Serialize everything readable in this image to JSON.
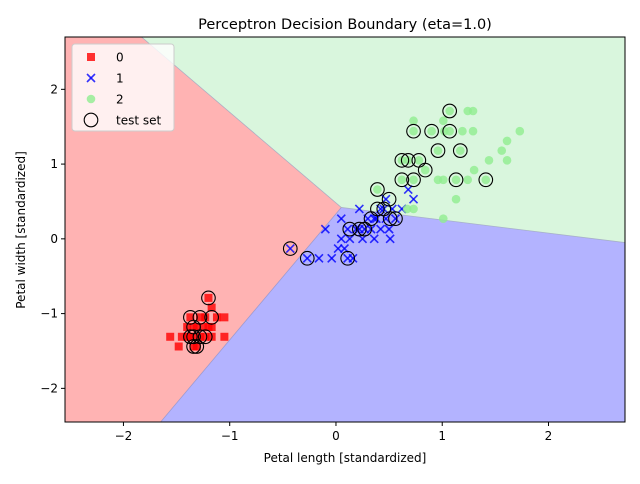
{
  "chart_data": {
    "type": "scatter",
    "title": "Perceptron Decision Boundary (eta=1.0)",
    "xlabel": "Petal length [standardized]",
    "ylabel": "Petal width [standardized]",
    "xlim": [
      -2.55,
      2.72
    ],
    "ylim": [
      -2.45,
      2.7
    ],
    "xticks": [
      -2,
      -1,
      0,
      1,
      2
    ],
    "yticks": [
      -2,
      -1,
      0,
      1,
      2
    ],
    "grid": false,
    "legend_position": "top-left",
    "regions": [
      {
        "class": "0",
        "color": "#FFB3B3"
      },
      {
        "class": "1",
        "color": "#B3B3FF"
      },
      {
        "class": "2",
        "color": "#D9F6DD"
      }
    ],
    "boundary_vertex": [
      0.05,
      0.42
    ],
    "boundaries": [
      {
        "between": "0|2",
        "from": [
          0.05,
          0.42
        ],
        "to": [
          -1.83,
          2.7
        ]
      },
      {
        "between": "0|1",
        "from": [
          0.05,
          0.42
        ],
        "to": [
          -1.65,
          -2.45
        ]
      },
      {
        "between": "1|2",
        "from": [
          0.05,
          0.42
        ],
        "to": [
          2.72,
          -0.05
        ]
      }
    ],
    "series": [
      {
        "name": "0",
        "marker": "square",
        "color": "#FF0000",
        "points": [
          [
            -1.56,
            -1.31
          ],
          [
            -1.48,
            -1.44
          ],
          [
            -1.45,
            -1.31
          ],
          [
            -1.4,
            -1.18
          ],
          [
            -1.37,
            -1.05
          ],
          [
            -1.34,
            -1.31
          ],
          [
            -1.34,
            -1.18
          ],
          [
            -1.31,
            -1.44
          ],
          [
            -1.28,
            -1.31
          ],
          [
            -1.25,
            -1.18
          ],
          [
            -1.23,
            -1.05
          ],
          [
            -1.2,
            -0.79
          ],
          [
            -1.17,
            -1.18
          ],
          [
            -1.17,
            -1.31
          ],
          [
            -1.17,
            -0.92
          ],
          [
            -1.12,
            -1.05
          ],
          [
            -1.05,
            -1.05
          ],
          [
            -1.05,
            -1.31
          ],
          [
            -1.28,
            -1.05
          ],
          [
            -1.37,
            -1.31
          ],
          [
            -1.31,
            -1.18
          ],
          [
            -1.23,
            -1.31
          ],
          [
            -1.34,
            -1.44
          ],
          [
            -1.4,
            -1.31
          ],
          [
            -1.2,
            -1.18
          ]
        ]
      },
      {
        "name": "1",
        "marker": "x",
        "color": "#0000FF",
        "points": [
          [
            -0.43,
            -0.13
          ],
          [
            -0.27,
            -0.26
          ],
          [
            -0.16,
            -0.26
          ],
          [
            -0.1,
            0.13
          ],
          [
            -0.04,
            -0.26
          ],
          [
            0.02,
            -0.13
          ],
          [
            0.05,
            0.0
          ],
          [
            0.05,
            0.27
          ],
          [
            0.08,
            -0.13
          ],
          [
            0.11,
            0.13
          ],
          [
            0.13,
            0.0
          ],
          [
            0.16,
            -0.26
          ],
          [
            0.19,
            0.13
          ],
          [
            0.22,
            0.4
          ],
          [
            0.25,
            0.0
          ],
          [
            0.27,
            0.13
          ],
          [
            0.3,
            0.27
          ],
          [
            0.33,
            0.13
          ],
          [
            0.36,
            0.0
          ],
          [
            0.38,
            0.27
          ],
          [
            0.42,
            0.13
          ],
          [
            0.45,
            0.4
          ],
          [
            0.47,
            0.27
          ],
          [
            0.5,
            0.13
          ],
          [
            0.51,
            0.0
          ],
          [
            0.53,
            0.4
          ],
          [
            0.56,
            0.27
          ],
          [
            0.62,
            0.4
          ],
          [
            0.68,
            0.66
          ],
          [
            0.73,
            0.53
          ],
          [
            0.11,
            -0.26
          ],
          [
            0.22,
            0.13
          ],
          [
            0.36,
            0.27
          ],
          [
            0.42,
            0.4
          ],
          [
            0.47,
            0.53
          ]
        ]
      },
      {
        "name": "2",
        "marker": "circle",
        "color": "#90EE90",
        "points": [
          [
            0.39,
            0.66
          ],
          [
            0.62,
            0.79
          ],
          [
            0.68,
            1.05
          ],
          [
            0.73,
            0.79
          ],
          [
            0.73,
            1.44
          ],
          [
            0.73,
            1.58
          ],
          [
            0.78,
            1.05
          ],
          [
            0.84,
            0.92
          ],
          [
            0.9,
            1.44
          ],
          [
            0.96,
            1.18
          ],
          [
            0.96,
            0.79
          ],
          [
            1.01,
            0.79
          ],
          [
            1.01,
            0.27
          ],
          [
            1.01,
            1.58
          ],
          [
            1.07,
            1.44
          ],
          [
            1.07,
            1.71
          ],
          [
            1.13,
            0.79
          ],
          [
            1.13,
            0.53
          ],
          [
            1.17,
            1.18
          ],
          [
            1.19,
            1.44
          ],
          [
            1.24,
            1.71
          ],
          [
            1.24,
            0.79
          ],
          [
            1.29,
            1.44
          ],
          [
            1.29,
            1.71
          ],
          [
            1.3,
            0.92
          ],
          [
            1.41,
            0.79
          ],
          [
            1.44,
            1.05
          ],
          [
            1.56,
            1.18
          ],
          [
            1.61,
            1.05
          ],
          [
            1.61,
            1.31
          ],
          [
            1.73,
            1.44
          ],
          [
            0.67,
            0.4
          ],
          [
            0.73,
            0.4
          ],
          [
            0.62,
            1.05
          ],
          [
            1.02,
            1.44
          ]
        ]
      }
    ],
    "test_set": {
      "name": "test set",
      "marker": "open-circle",
      "points": [
        [
          -1.37,
          -1.05
        ],
        [
          -1.28,
          -1.05
        ],
        [
          -1.2,
          -0.79
        ],
        [
          -1.17,
          -1.05
        ],
        [
          -1.34,
          -1.18
        ],
        [
          -1.34,
          -1.31
        ],
        [
          -1.34,
          -1.44
        ],
        [
          -1.28,
          -1.31
        ],
        [
          -1.31,
          -1.44
        ],
        [
          -1.23,
          -1.31
        ],
        [
          -1.37,
          -1.31
        ],
        [
          -0.43,
          -0.13
        ],
        [
          -0.27,
          -0.26
        ],
        [
          0.11,
          -0.26
        ],
        [
          0.13,
          0.13
        ],
        [
          0.22,
          0.13
        ],
        [
          0.27,
          0.13
        ],
        [
          0.33,
          0.27
        ],
        [
          0.39,
          0.4
        ],
        [
          0.45,
          0.4
        ],
        [
          0.5,
          0.53
        ],
        [
          0.56,
          0.27
        ],
        [
          0.51,
          0.27
        ],
        [
          0.39,
          0.66
        ],
        [
          0.62,
          0.79
        ],
        [
          0.62,
          1.05
        ],
        [
          0.68,
          1.05
        ],
        [
          0.73,
          0.79
        ],
        [
          0.73,
          1.44
        ],
        [
          0.78,
          1.05
        ],
        [
          0.84,
          0.92
        ],
        [
          0.9,
          1.44
        ],
        [
          0.96,
          1.18
        ],
        [
          1.07,
          1.44
        ],
        [
          1.07,
          1.71
        ],
        [
          1.13,
          0.79
        ],
        [
          1.17,
          1.18
        ],
        [
          1.41,
          0.79
        ]
      ]
    }
  }
}
